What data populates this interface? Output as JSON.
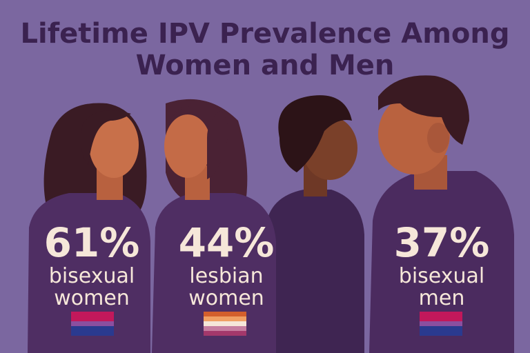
{
  "title": {
    "lines": [
      "Lifetime IPV Prevalence Among",
      "Women and Men"
    ]
  },
  "figures": [
    {
      "percent": "61%",
      "label": [
        "bisexual",
        "women"
      ]
    },
    {
      "percent": "44%",
      "label": [
        "lesbian",
        "women"
      ]
    },
    {
      "percent": "37%",
      "label": [
        "bisexual",
        "men"
      ]
    }
  ]
}
